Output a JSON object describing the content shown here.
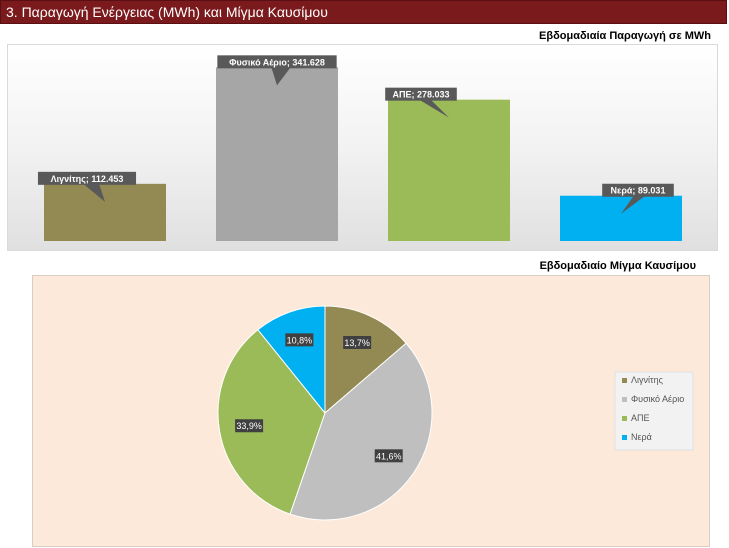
{
  "header": {
    "title": "3. Παραγωγή Ενέργειας (MWh) και Μίγμα Καυσίμου"
  },
  "chart_data": [
    {
      "type": "bar",
      "title": "Εβδομαδιαία Παραγωγή σε MWh",
      "categories": [
        "Λιγνίτης",
        "Φυσικό Αέριο",
        "ΑΠΕ",
        "Νερά"
      ],
      "values": [
        112.453,
        341.628,
        278.033,
        89.031
      ],
      "labels": [
        "Λιγνίτης; 112.453",
        "Φυσικό Αέριο; 341.628",
        "ΑΠΕ; 278.033",
        "Νερά; 89.031"
      ],
      "colors": [
        "#938953",
        "#a6a6a6",
        "#9bbb59",
        "#00b0f0"
      ],
      "ylim": [
        0,
        360
      ],
      "grid": false
    },
    {
      "type": "pie",
      "title": "Εβδομαδιαίο Μίγμα Καυσίμου",
      "categories": [
        "Λιγνίτης",
        "Φυσικό Αέριο",
        "ΑΠΕ",
        "Νερά"
      ],
      "values": [
        13.7,
        41.6,
        33.9,
        10.8
      ],
      "labels": [
        "13,7%",
        "41,6%",
        "33,9%",
        "10,8%"
      ],
      "colors": [
        "#938953",
        "#bfbfbf",
        "#9bbb59",
        "#00b0f0"
      ],
      "legend": "right"
    }
  ]
}
